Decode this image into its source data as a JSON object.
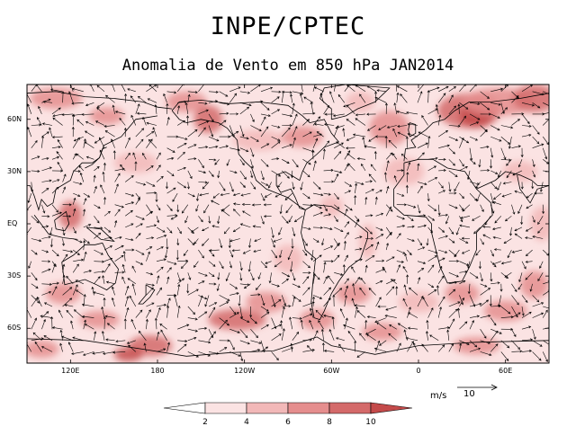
{
  "header": {
    "title": "INPE/CPTEC",
    "subtitle": "Anomalia de Vento em 850 hPa JAN2014"
  },
  "map": {
    "lat_labels": [
      "60N",
      "30N",
      "EQ",
      "30S",
      "60S"
    ],
    "lat_values": [
      60,
      30,
      0,
      -30,
      -60
    ],
    "lon_labels": [
      "120E",
      "180",
      "120W",
      "60W",
      "0",
      "60E"
    ],
    "lon_values": [
      120,
      180,
      240,
      300,
      360,
      420
    ],
    "lon_range": [
      90,
      450
    ],
    "lat_range": [
      -80,
      80
    ]
  },
  "colorbar": {
    "levels": [
      "2",
      "4",
      "6",
      "8",
      "10"
    ],
    "colors": [
      "#ffffff",
      "#fbe3e3",
      "#f2b8b8",
      "#e58e8e",
      "#d46a6a",
      "#c44a4a"
    ]
  },
  "reference_vector": {
    "unit": "m/s",
    "value": "10"
  },
  "colors": {
    "shade_light": "#fbe3e3",
    "shade_mid": "#f2b8b8",
    "shade_dark": "#d46a6a",
    "coast": "#000000"
  }
}
